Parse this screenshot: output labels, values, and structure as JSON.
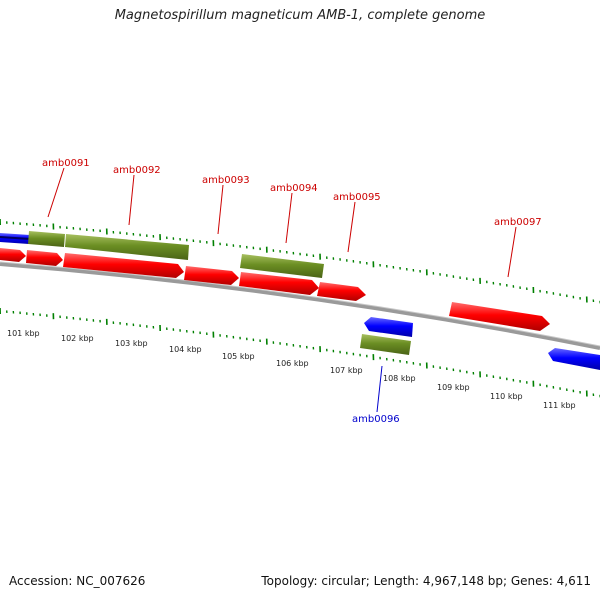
{
  "title": "Magnetospirillum magneticum AMB-1, complete genome",
  "footer": {
    "accession": "Accession: NC_007626",
    "summary": "Topology: circular; Length: 4,967,148 bp; Genes: 4,611"
  },
  "colors": {
    "forward_cds": "#ff0000",
    "reverse_cds": "#0000ff",
    "gene_bar": "#6b8e23",
    "tick_marks": "#008000",
    "backbone": "#808080",
    "forward_label": "#cc0000",
    "reverse_label": "#0000cc"
  },
  "scale": {
    "labels": [
      "101 kbp",
      "102 kbp",
      "103 kbp",
      "104 kbp",
      "105 kbp",
      "106 kbp",
      "107 kbp",
      "108 kbp",
      "109 kbp",
      "110 kbp",
      "111 kbp"
    ]
  },
  "features": {
    "forward_labels": [
      "amb0091",
      "amb0092",
      "amb0093",
      "amb0094",
      "amb0095",
      "amb0097"
    ],
    "reverse_labels": [
      "amb0096"
    ]
  }
}
